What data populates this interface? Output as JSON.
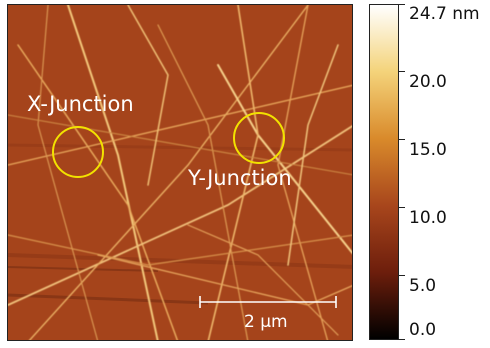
{
  "image": {
    "x_junction_label": "X-Junction",
    "y_junction_label": "Y-Junction",
    "scale_bar_label": "2 µm",
    "marker_color": "#f2e200"
  },
  "colorbar": {
    "unit_max_label": "24.7 nm",
    "ticks": [
      "20.0",
      "15.0",
      "10.0",
      "5.0",
      "0.0"
    ],
    "max_value": 24.7,
    "unit": "nm",
    "colors": [
      "#ffffff",
      "#f4d37a",
      "#d98a2b",
      "#a8461c",
      "#6d1e0c",
      "#000000"
    ]
  }
}
